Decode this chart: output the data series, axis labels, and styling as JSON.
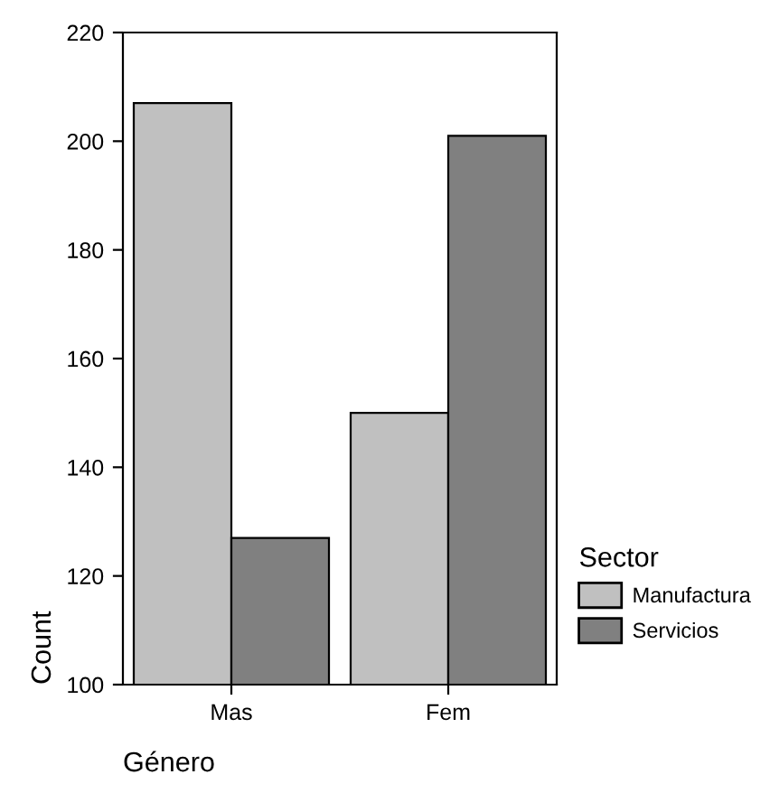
{
  "chart_data": {
    "type": "bar",
    "xlabel": "Género",
    "ylabel": "Count",
    "legend_title": "Sector",
    "categories": [
      "Mas",
      "Fem"
    ],
    "series": [
      {
        "name": "Manufactura",
        "color": "#c0c0c0",
        "values": [
          207,
          150
        ]
      },
      {
        "name": "Servicios",
        "color": "#808080",
        "values": [
          127,
          201
        ]
      }
    ],
    "ylim": [
      100,
      220
    ],
    "yticks": [
      100,
      120,
      140,
      160,
      180,
      200,
      220
    ],
    "grid": false,
    "legend": "right"
  }
}
